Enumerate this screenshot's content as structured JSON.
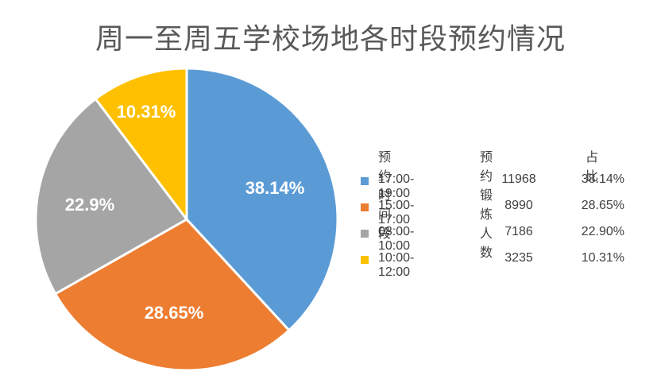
{
  "chart_data": {
    "type": "pie",
    "title": "周一至周五学校场地各时段预约情况",
    "categories": [
      "17:00-19:00",
      "15:00-17:00",
      "08:00-10:00",
      "10:00-12:00"
    ],
    "values": [
      11968,
      8990,
      7186,
      3235
    ],
    "percentages": [
      38.14,
      28.65,
      22.9,
      10.31
    ],
    "data_labels": [
      "38.14%",
      "28.65%",
      "22.9%",
      "10.31%"
    ],
    "colors": [
      "#5B9BD5",
      "#ED7D31",
      "#A5A5A5",
      "#FFC000"
    ],
    "start_angle": "12 o'clock, clockwise",
    "legend_position": "right",
    "legend_columns": [
      "预约时间段",
      "预约锻炼人数",
      "占比"
    ]
  },
  "title": "周一至周五学校场地各时段预约情况",
  "legend": {
    "headers": [
      "预约时间段",
      "预约锻炼人数",
      "占比"
    ],
    "rows": [
      {
        "period": "17:00-19:00",
        "count": "11968",
        "share": "38.14%",
        "color": "#5B9BD5"
      },
      {
        "period": "15:00-17:00",
        "count": "8990",
        "share": "28.65%",
        "color": "#ED7D31"
      },
      {
        "period": "08:00-10:00",
        "count": "7186",
        "share": "22.90%",
        "color": "#A5A5A5"
      },
      {
        "period": "10:00-12:00",
        "count": "3235",
        "share": "10.31%",
        "color": "#FFC000"
      }
    ]
  },
  "slice_labels": [
    "38.14%",
    "28.65%",
    "22.9%",
    "10.31%"
  ]
}
